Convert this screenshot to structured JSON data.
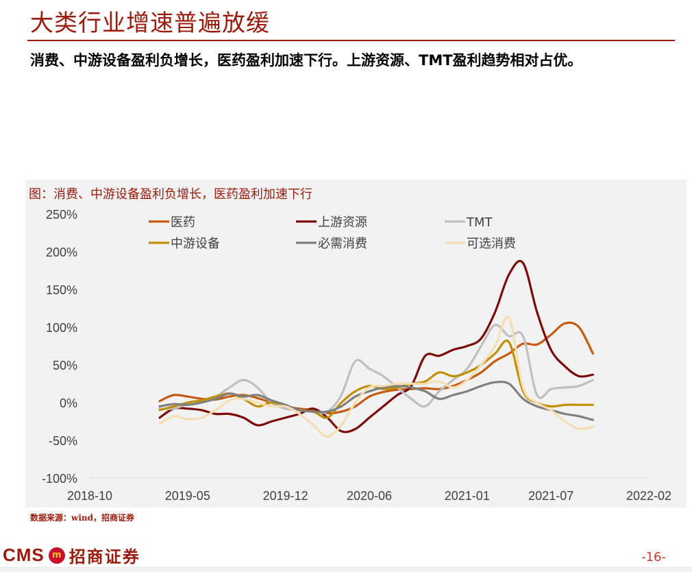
{
  "page": {
    "title": "大类行业增速普遍放缓",
    "subtitle": "消费、中游设备盈利负增长，医药盈利加速下行。上游资源、TMT盈利趋势相对占优。",
    "source": "数据来源：wind，招商证券",
    "logo_latin": "CMS",
    "logo_chinese": "招商证券",
    "page_number": "-16-"
  },
  "colors": {
    "brand": "#9b1a0c",
    "panel": "#f2f2f2"
  },
  "chart_data": {
    "type": "line",
    "title": "图：消费、中游设备盈利负增长，医药盈利加速下行",
    "xlabel": "",
    "ylabel": "",
    "ylim": [
      -100,
      250
    ],
    "yticks": [
      "250%",
      "200%",
      "150%",
      "100%",
      "50%",
      "0%",
      "-50%",
      "-100%"
    ],
    "xticks": [
      "2018-10",
      "2019-05",
      "2019-12",
      "2020-06",
      "2021-01",
      "2021-07",
      "2022-02"
    ],
    "xrange": [
      "2018-10",
      "2022-02"
    ],
    "grid": false,
    "legend_position": "top",
    "series": [
      {
        "name": "医药",
        "color": "#c55a11",
        "points": [
          [
            "2019-03",
            2
          ],
          [
            "2019-04",
            10
          ],
          [
            "2019-05",
            8
          ],
          [
            "2019-06",
            5
          ],
          [
            "2019-07",
            4
          ],
          [
            "2019-08",
            8
          ],
          [
            "2019-09",
            10
          ],
          [
            "2019-10",
            6
          ],
          [
            "2019-11",
            0
          ],
          [
            "2019-12",
            -5
          ],
          [
            "2020-01",
            -8
          ],
          [
            "2020-02",
            -10
          ],
          [
            "2020-03",
            -14
          ],
          [
            "2020-04",
            -12
          ],
          [
            "2020-05",
            -5
          ],
          [
            "2020-06",
            8
          ],
          [
            "2020-07",
            14
          ],
          [
            "2020-08",
            17
          ],
          [
            "2020-09",
            18
          ],
          [
            "2020-10",
            19
          ],
          [
            "2020-11",
            18
          ],
          [
            "2020-12",
            22
          ],
          [
            "2021-01",
            30
          ],
          [
            "2021-02",
            40
          ],
          [
            "2021-03",
            55
          ],
          [
            "2021-04",
            65
          ],
          [
            "2021-05",
            78
          ],
          [
            "2021-06",
            77
          ],
          [
            "2021-07",
            90
          ],
          [
            "2021-08",
            105
          ],
          [
            "2021-09",
            100
          ],
          [
            "2021-10",
            65
          ]
        ]
      },
      {
        "name": "上游资源",
        "color": "#7b0a08",
        "points": [
          [
            "2019-03",
            -20
          ],
          [
            "2019-04",
            -8
          ],
          [
            "2019-05",
            -8
          ],
          [
            "2019-06",
            -10
          ],
          [
            "2019-07",
            -15
          ],
          [
            "2019-08",
            -15
          ],
          [
            "2019-09",
            -20
          ],
          [
            "2019-10",
            -30
          ],
          [
            "2019-11",
            -25
          ],
          [
            "2019-12",
            -20
          ],
          [
            "2020-01",
            -15
          ],
          [
            "2020-02",
            -8
          ],
          [
            "2020-03",
            -20
          ],
          [
            "2020-04",
            -38
          ],
          [
            "2020-05",
            -35
          ],
          [
            "2020-06",
            -20
          ],
          [
            "2020-07",
            -5
          ],
          [
            "2020-08",
            10
          ],
          [
            "2020-09",
            22
          ],
          [
            "2020-10",
            62
          ],
          [
            "2020-11",
            62
          ],
          [
            "2020-12",
            70
          ],
          [
            "2021-01",
            75
          ],
          [
            "2021-02",
            85
          ],
          [
            "2021-03",
            120
          ],
          [
            "2021-04",
            170
          ],
          [
            "2021-05",
            185
          ],
          [
            "2021-06",
            120
          ],
          [
            "2021-07",
            70
          ],
          [
            "2021-08",
            48
          ],
          [
            "2021-09",
            35
          ],
          [
            "2021-10",
            37
          ]
        ]
      },
      {
        "name": "TMT",
        "color": "#bfbfbf",
        "points": [
          [
            "2019-03",
            -8
          ],
          [
            "2019-04",
            -8
          ],
          [
            "2019-05",
            -2
          ],
          [
            "2019-06",
            2
          ],
          [
            "2019-07",
            8
          ],
          [
            "2019-08",
            20
          ],
          [
            "2019-09",
            30
          ],
          [
            "2019-10",
            20
          ],
          [
            "2019-11",
            0
          ],
          [
            "2019-12",
            -8
          ],
          [
            "2020-01",
            -10
          ],
          [
            "2020-02",
            -12
          ],
          [
            "2020-03",
            -12
          ],
          [
            "2020-04",
            10
          ],
          [
            "2020-05",
            55
          ],
          [
            "2020-06",
            45
          ],
          [
            "2020-07",
            35
          ],
          [
            "2020-08",
            20
          ],
          [
            "2020-09",
            5
          ],
          [
            "2020-10",
            -5
          ],
          [
            "2020-11",
            15
          ],
          [
            "2020-12",
            30
          ],
          [
            "2021-01",
            45
          ],
          [
            "2021-02",
            75
          ],
          [
            "2021-03",
            103
          ],
          [
            "2021-04",
            88
          ],
          [
            "2021-05",
            88
          ],
          [
            "2021-06",
            10
          ],
          [
            "2021-07",
            18
          ],
          [
            "2021-08",
            20
          ],
          [
            "2021-09",
            22
          ],
          [
            "2021-10",
            30
          ]
        ]
      },
      {
        "name": "中游设备",
        "color": "#bf9000",
        "points": [
          [
            "2019-03",
            -10
          ],
          [
            "2019-04",
            -5
          ],
          [
            "2019-05",
            0
          ],
          [
            "2019-06",
            3
          ],
          [
            "2019-07",
            8
          ],
          [
            "2019-08",
            12
          ],
          [
            "2019-09",
            5
          ],
          [
            "2019-10",
            -5
          ],
          [
            "2019-11",
            0
          ],
          [
            "2019-12",
            -5
          ],
          [
            "2020-01",
            -10
          ],
          [
            "2020-02",
            -12
          ],
          [
            "2020-03",
            -20
          ],
          [
            "2020-04",
            0
          ],
          [
            "2020-05",
            15
          ],
          [
            "2020-06",
            22
          ],
          [
            "2020-07",
            18
          ],
          [
            "2020-08",
            20
          ],
          [
            "2020-09",
            25
          ],
          [
            "2020-10",
            28
          ],
          [
            "2020-11",
            40
          ],
          [
            "2020-12",
            35
          ],
          [
            "2021-01",
            40
          ],
          [
            "2021-02",
            50
          ],
          [
            "2021-03",
            65
          ],
          [
            "2021-04",
            80
          ],
          [
            "2021-05",
            15
          ],
          [
            "2021-06",
            0
          ],
          [
            "2021-07",
            -5
          ],
          [
            "2021-08",
            -3
          ],
          [
            "2021-09",
            -3
          ],
          [
            "2021-10",
            -3
          ]
        ]
      },
      {
        "name": "必需消费",
        "color": "#7f7f7f",
        "points": [
          [
            "2019-03",
            -5
          ],
          [
            "2019-04",
            -2
          ],
          [
            "2019-05",
            -3
          ],
          [
            "2019-06",
            0
          ],
          [
            "2019-07",
            5
          ],
          [
            "2019-08",
            12
          ],
          [
            "2019-09",
            8
          ],
          [
            "2019-10",
            10
          ],
          [
            "2019-11",
            3
          ],
          [
            "2019-12",
            -3
          ],
          [
            "2020-01",
            -10
          ],
          [
            "2020-02",
            -12
          ],
          [
            "2020-03",
            -12
          ],
          [
            "2020-04",
            -5
          ],
          [
            "2020-05",
            8
          ],
          [
            "2020-06",
            15
          ],
          [
            "2020-07",
            20
          ],
          [
            "2020-08",
            22
          ],
          [
            "2020-09",
            20
          ],
          [
            "2020-10",
            15
          ],
          [
            "2020-11",
            5
          ],
          [
            "2020-12",
            10
          ],
          [
            "2021-01",
            15
          ],
          [
            "2021-02",
            22
          ],
          [
            "2021-03",
            27
          ],
          [
            "2021-04",
            25
          ],
          [
            "2021-05",
            5
          ],
          [
            "2021-06",
            -5
          ],
          [
            "2021-07",
            -10
          ],
          [
            "2021-08",
            -15
          ],
          [
            "2021-09",
            -18
          ],
          [
            "2021-10",
            -23
          ]
        ]
      },
      {
        "name": "可选消费",
        "color": "#f5deb3",
        "points": [
          [
            "2019-03",
            -28
          ],
          [
            "2019-04",
            -18
          ],
          [
            "2019-05",
            -22
          ],
          [
            "2019-06",
            -20
          ],
          [
            "2019-07",
            -10
          ],
          [
            "2019-08",
            3
          ],
          [
            "2019-09",
            5
          ],
          [
            "2019-10",
            0
          ],
          [
            "2019-11",
            -5
          ],
          [
            "2019-12",
            -5
          ],
          [
            "2020-01",
            -15
          ],
          [
            "2020-02",
            -30
          ],
          [
            "2020-03",
            -45
          ],
          [
            "2020-04",
            -30
          ],
          [
            "2020-05",
            0
          ],
          [
            "2020-06",
            20
          ],
          [
            "2020-07",
            22
          ],
          [
            "2020-08",
            25
          ],
          [
            "2020-09",
            25
          ],
          [
            "2020-10",
            25
          ],
          [
            "2020-11",
            28
          ],
          [
            "2020-12",
            20
          ],
          [
            "2021-01",
            30
          ],
          [
            "2021-02",
            50
          ],
          [
            "2021-03",
            75
          ],
          [
            "2021-04",
            112
          ],
          [
            "2021-05",
            20
          ],
          [
            "2021-06",
            0
          ],
          [
            "2021-07",
            -10
          ],
          [
            "2021-08",
            -25
          ],
          [
            "2021-09",
            -35
          ],
          [
            "2021-10",
            -32
          ]
        ]
      }
    ]
  }
}
